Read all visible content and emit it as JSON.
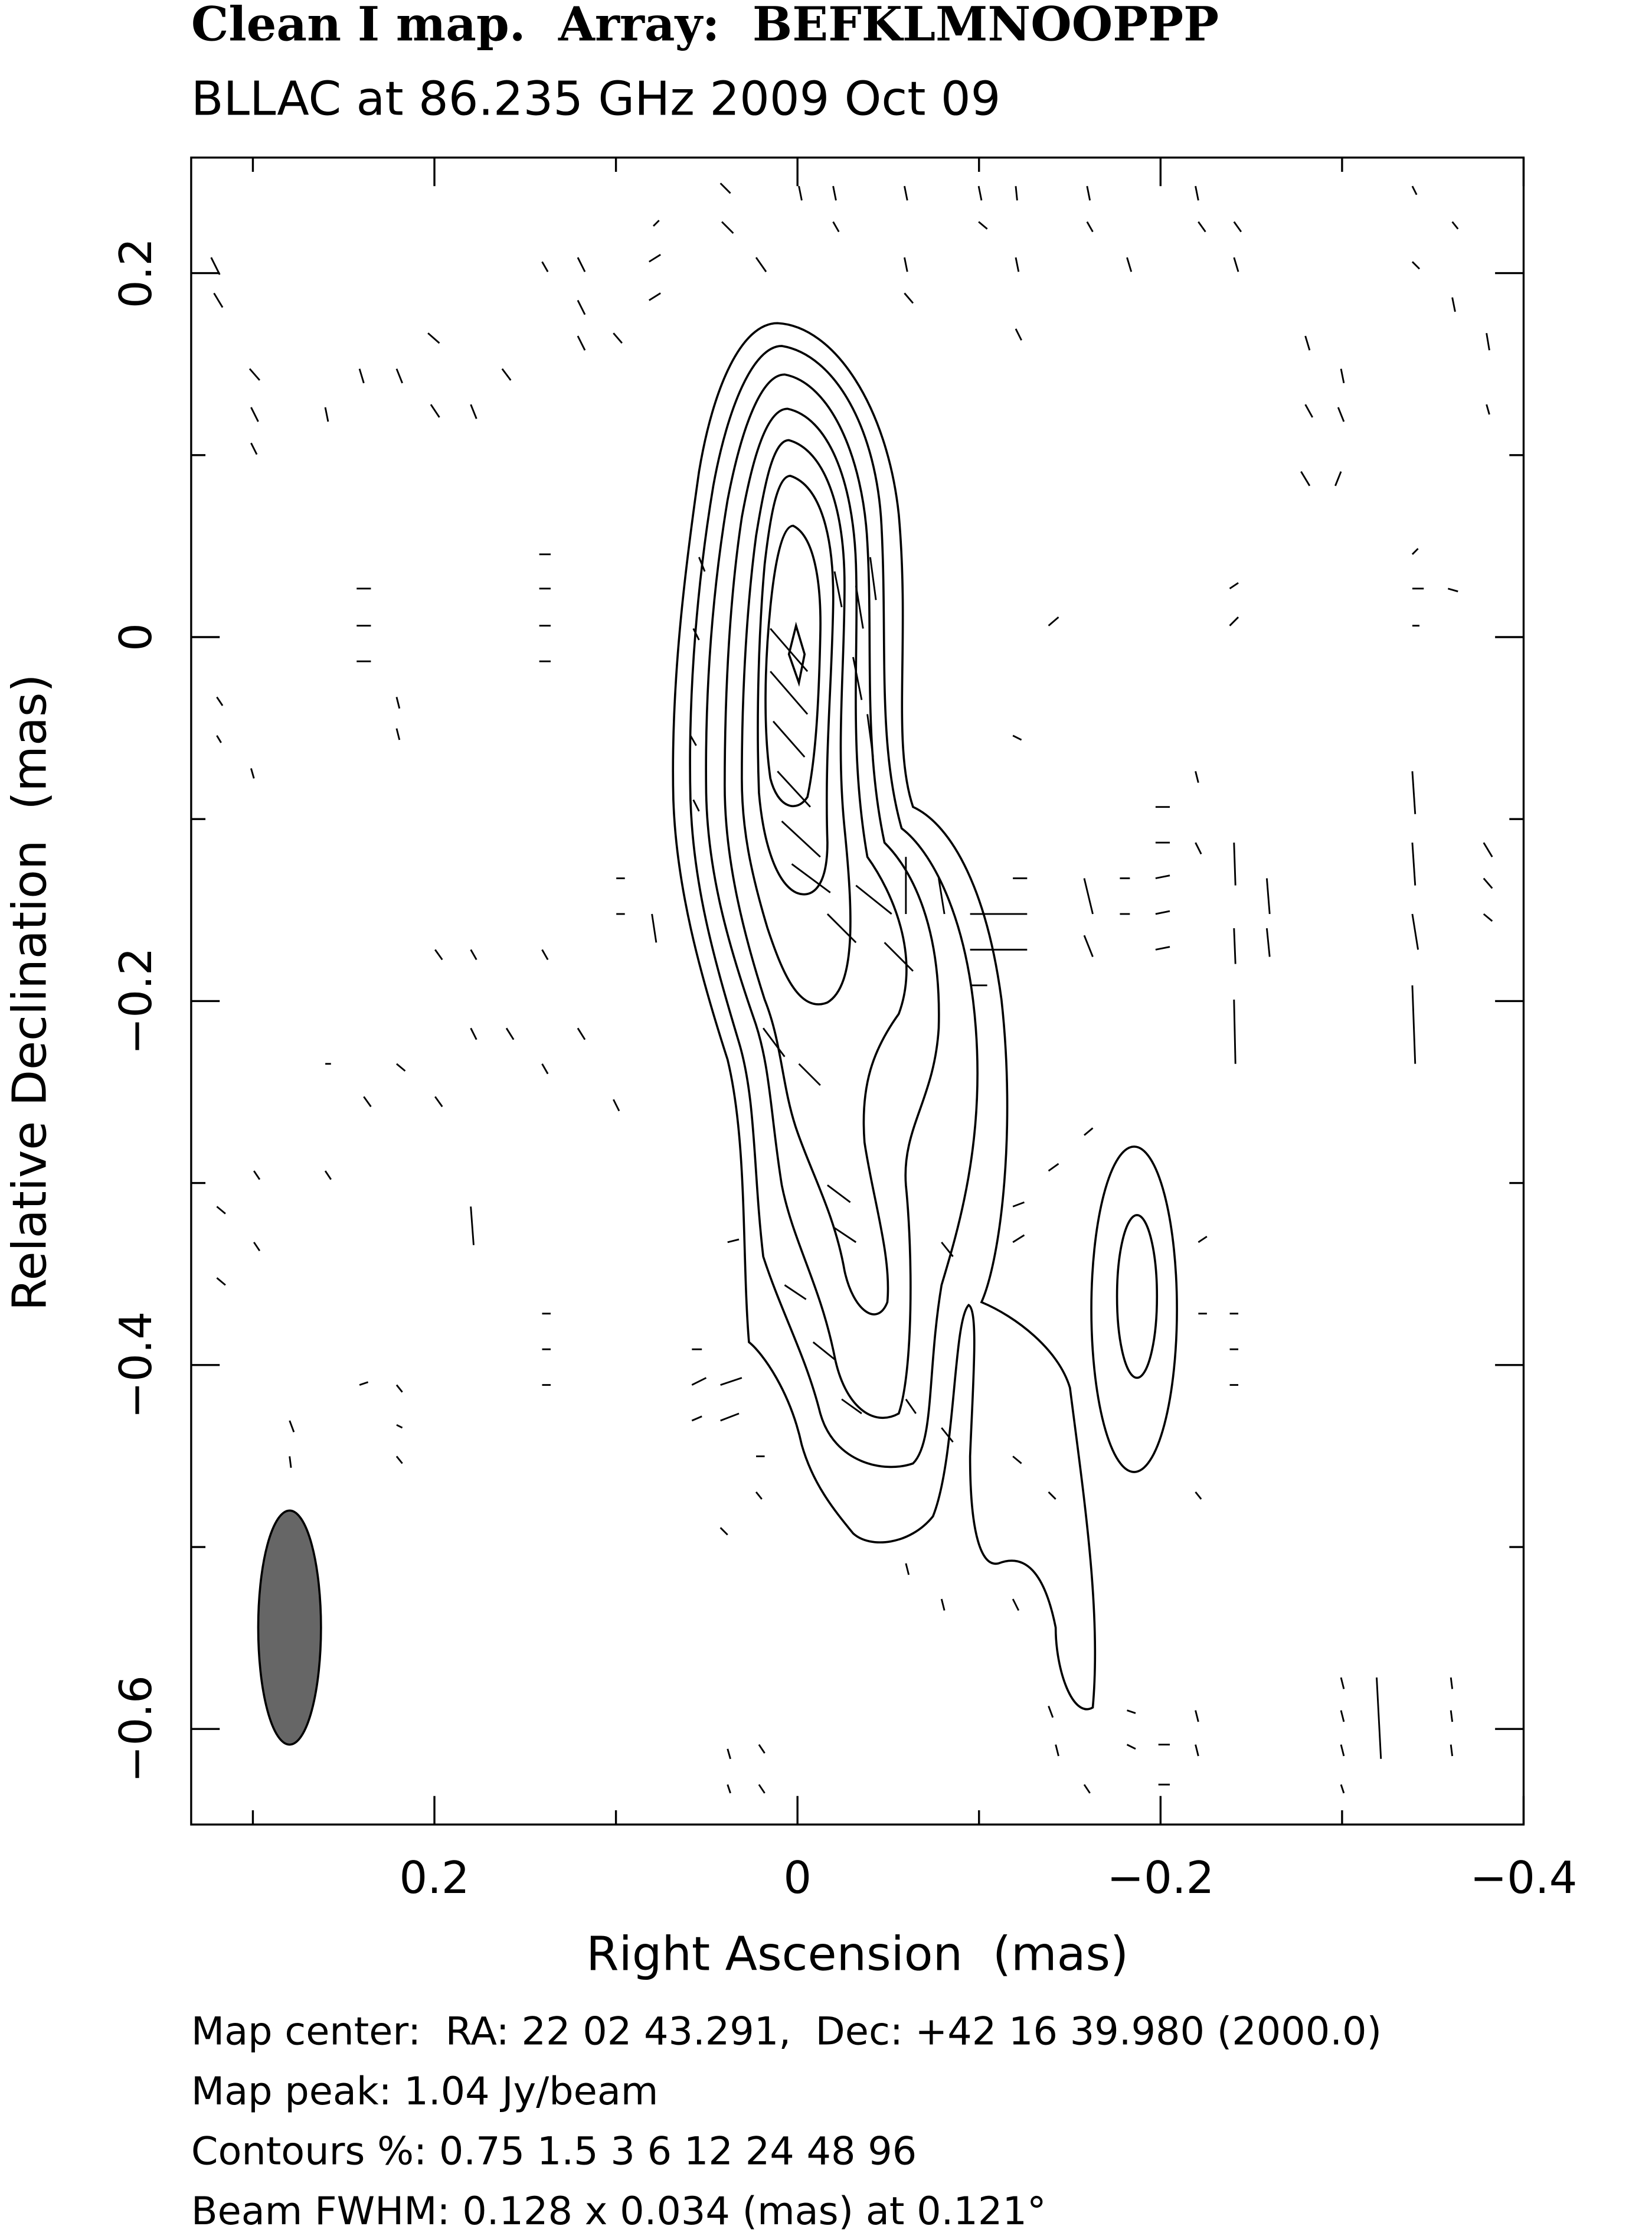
{
  "chart_data": {
    "type": "contour",
    "title": "Clean I map.  Array:  BEFKLMNOOPPP",
    "subtitle": "BLLAC at 86.235 GHz 2009 Oct 09",
    "xlabel": "Right Ascension  (mas)",
    "ylabel": "Relative Declination  (mas)",
    "xlim": [
      0.334,
      -0.4
    ],
    "ylim": [
      -0.6525,
      0.2635
    ],
    "xticks": [
      {
        "value": 0.2,
        "label": "0.2"
      },
      0,
      {
        "value": -0.2,
        "label": "−0.2"
      },
      {
        "value": -0.4,
        "label": "−0.4"
      }
    ],
    "xminor": [
      0.3,
      0.1,
      -0.1,
      -0.3
    ],
    "yticks": [
      {
        "value": 0.2,
        "label": "0.2"
      },
      0,
      {
        "value": -0.2,
        "label": "−0.2"
      },
      {
        "value": -0.4,
        "label": "−0.4"
      },
      {
        "value": -0.6,
        "label": "−0.6"
      }
    ],
    "yminor": [
      0.1,
      -0.1,
      -0.3,
      -0.5
    ],
    "footer": [
      "Map center:  RA: 22 02 43.291,  Dec: +42 16 39.980 (2000.0)",
      "Map peak: 1.04 Jy/beam",
      "Contours %: 0.75 1.5 3 6 12 24 48 96",
      "Beam FWHM: 0.128 x 0.034 (mas) at 0.121°"
    ]
  }
}
